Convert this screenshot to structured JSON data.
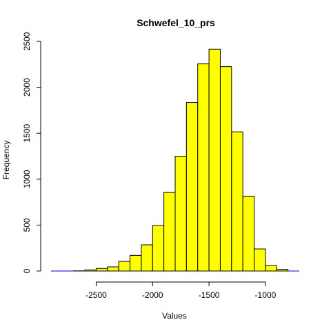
{
  "chart_data": {
    "type": "bar",
    "title": "Schwefel_10_prs",
    "xlabel": "Values",
    "ylabel": "Frequency",
    "bin_width": 100,
    "bins": [
      {
        "x0": -2900,
        "x1": -2800,
        "count": 0
      },
      {
        "x0": -2800,
        "x1": -2700,
        "count": 0
      },
      {
        "x0": -2700,
        "x1": -2600,
        "count": 2
      },
      {
        "x0": -2600,
        "x1": -2500,
        "count": 12
      },
      {
        "x0": -2500,
        "x1": -2400,
        "count": 28
      },
      {
        "x0": -2400,
        "x1": -2300,
        "count": 45
      },
      {
        "x0": -2300,
        "x1": -2200,
        "count": 105
      },
      {
        "x0": -2200,
        "x1": -2100,
        "count": 170
      },
      {
        "x0": -2100,
        "x1": -2000,
        "count": 285
      },
      {
        "x0": -2000,
        "x1": -1900,
        "count": 495
      },
      {
        "x0": -1900,
        "x1": -1800,
        "count": 855
      },
      {
        "x0": -1800,
        "x1": -1700,
        "count": 1250
      },
      {
        "x0": -1700,
        "x1": -1600,
        "count": 1835
      },
      {
        "x0": -1600,
        "x1": -1500,
        "count": 2255
      },
      {
        "x0": -1500,
        "x1": -1400,
        "count": 2415
      },
      {
        "x0": -1400,
        "x1": -1300,
        "count": 2225
      },
      {
        "x0": -1300,
        "x1": -1200,
        "count": 1515
      },
      {
        "x0": -1200,
        "x1": -1100,
        "count": 815
      },
      {
        "x0": -1100,
        "x1": -1000,
        "count": 240
      },
      {
        "x0": -1000,
        "x1": -900,
        "count": 60
      },
      {
        "x0": -900,
        "x1": -800,
        "count": 18
      },
      {
        "x0": -800,
        "x1": -700,
        "count": 0
      }
    ],
    "xlim": [
      -2900,
      -700
    ],
    "ylim": [
      0,
      2500
    ],
    "x_ticks": [
      -2500,
      -2000,
      -1500,
      -1000
    ],
    "x_tick_labels": [
      "-2500",
      "-2000",
      "-1500",
      "-1000"
    ],
    "y_ticks": [
      0,
      500,
      1000,
      1500,
      2000,
      2500
    ],
    "y_tick_labels": [
      "0",
      "500",
      "1000",
      "1500",
      "2000",
      "2500"
    ],
    "colors": {
      "bar_fill": "#ffff00",
      "bar_stroke": "#000000",
      "baseline": "#0000cc"
    },
    "grid": false,
    "legend": "none"
  }
}
